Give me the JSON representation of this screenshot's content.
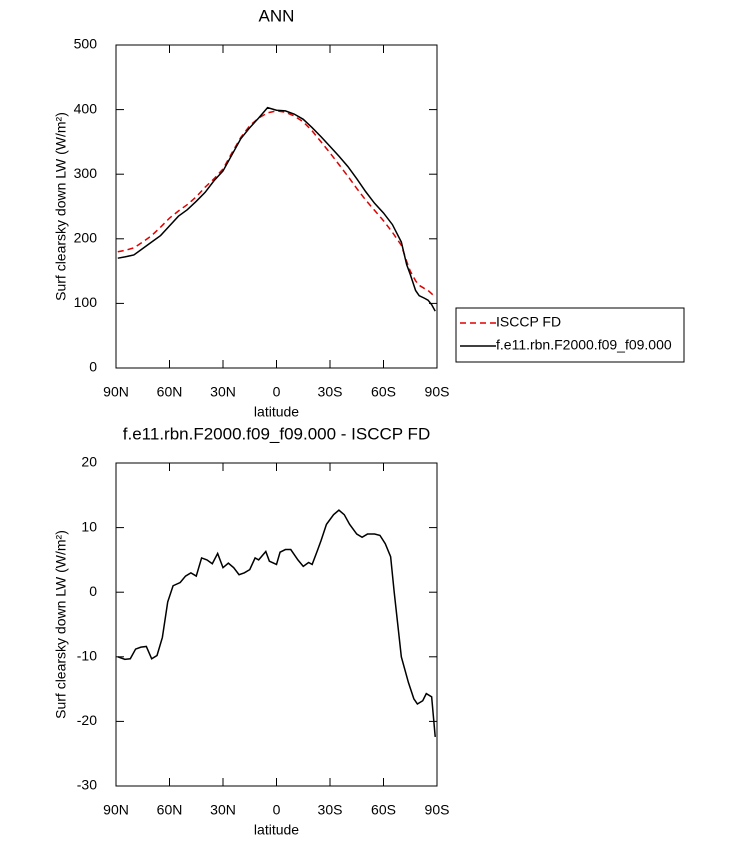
{
  "chart_data": [
    {
      "type": "line",
      "title": "ANN",
      "xlabel": "latitude",
      "ylabel": "Surf clearsky down LW (W/m²)",
      "x": [
        89,
        85,
        80,
        75,
        70,
        65,
        60,
        55,
        50,
        45,
        40,
        35,
        30,
        25,
        20,
        15,
        10,
        5,
        0,
        -5,
        -10,
        -15,
        -20,
        -25,
        -30,
        -35,
        -40,
        -45,
        -50,
        -55,
        -60,
        -65,
        -70,
        -73,
        -75,
        -78,
        -80,
        -83,
        -85,
        -87,
        -89
      ],
      "series": [
        {
          "name": "ISCCP FD",
          "color": "#e00000",
          "dash": "dashed",
          "values": [
            180,
            182,
            186,
            195,
            205,
            218,
            232,
            243,
            253,
            265,
            280,
            293,
            308,
            333,
            357,
            375,
            387,
            395,
            398,
            396,
            390,
            381,
            367,
            350,
            333,
            315,
            297,
            278,
            260,
            244,
            228,
            210,
            190,
            165,
            150,
            135,
            128,
            123,
            120,
            115,
            110
          ]
        },
        {
          "name": "f.e11.rbn.F2000.f09_f09.000",
          "color": "#000000",
          "dash": "solid",
          "values": [
            170,
            172,
            175,
            185,
            195,
            205,
            220,
            235,
            245,
            258,
            272,
            290,
            305,
            330,
            355,
            372,
            387,
            403,
            399,
            398,
            393,
            385,
            372,
            358,
            343,
            328,
            312,
            293,
            273,
            255,
            240,
            222,
            195,
            160,
            145,
            120,
            112,
            108,
            105,
            98,
            88
          ]
        }
      ],
      "xlim": [
        90,
        -90
      ],
      "xticks": [
        {
          "value": 90,
          "label": "90N"
        },
        {
          "value": 60,
          "label": "60N"
        },
        {
          "value": 30,
          "label": "30N"
        },
        0,
        {
          "value": -30,
          "label": "30S"
        },
        {
          "value": -60,
          "label": "60S"
        },
        {
          "value": -90,
          "label": "90S"
        }
      ],
      "ylim": [
        0,
        500
      ],
      "yticks": [
        0,
        100,
        200,
        300,
        400,
        500
      ],
      "legend": "right"
    },
    {
      "type": "line",
      "title": "f.e11.rbn.F2000.f09_f09.000 - ISCCP FD",
      "xlabel": "latitude",
      "ylabel": "Surf clearsky down LW (W/m²)",
      "x": [
        89,
        85,
        82,
        79,
        76,
        73,
        70,
        67,
        64,
        61,
        58,
        54,
        51,
        48,
        45,
        42,
        39,
        36,
        33,
        30,
        27,
        24,
        21,
        18,
        15,
        12,
        10,
        6,
        4,
        0,
        -2,
        -5,
        -8,
        -12,
        -15,
        -18,
        -20,
        -23,
        -25,
        -28,
        -32,
        -35,
        -38,
        -41,
        -45,
        -48,
        -51,
        -55,
        -58,
        -61,
        -64,
        -66,
        -68,
        -70,
        -74,
        -77,
        -79,
        -82,
        -84,
        -87,
        -89
      ],
      "series": [
        {
          "color": "#000000",
          "dash": "solid",
          "values": [
            -10,
            -10.4,
            -10.3,
            -8.8,
            -8.5,
            -8.4,
            -10.3,
            -9.8,
            -7,
            -1.5,
            1,
            1.5,
            2.5,
            3,
            2.5,
            5.3,
            5,
            4.4,
            6,
            3.8,
            4.5,
            3.8,
            2.7,
            3,
            3.5,
            5.3,
            5,
            6.3,
            4.8,
            4.3,
            6.2,
            6.6,
            6.6,
            5,
            4,
            4.6,
            4.3,
            6.5,
            8,
            10.5,
            12,
            12.7,
            12,
            10.5,
            9,
            8.5,
            9,
            9,
            8.8,
            7.5,
            5.5,
            0,
            -5,
            -10,
            -14,
            -16.5,
            -17.3,
            -16.8,
            -15.7,
            -16.2,
            -22.4
          ]
        }
      ],
      "xlim": [
        90,
        -90
      ],
      "xticks": [
        {
          "value": 90,
          "label": "90N"
        },
        {
          "value": 60,
          "label": "60N"
        },
        {
          "value": 30,
          "label": "30N"
        },
        0,
        {
          "value": -30,
          "label": "30S"
        },
        {
          "value": -60,
          "label": "60S"
        },
        {
          "value": -90,
          "label": "90S"
        }
      ],
      "ylim": [
        -30,
        20
      ],
      "yticks": [
        -30,
        -20,
        -10,
        0,
        10,
        20
      ]
    }
  ]
}
